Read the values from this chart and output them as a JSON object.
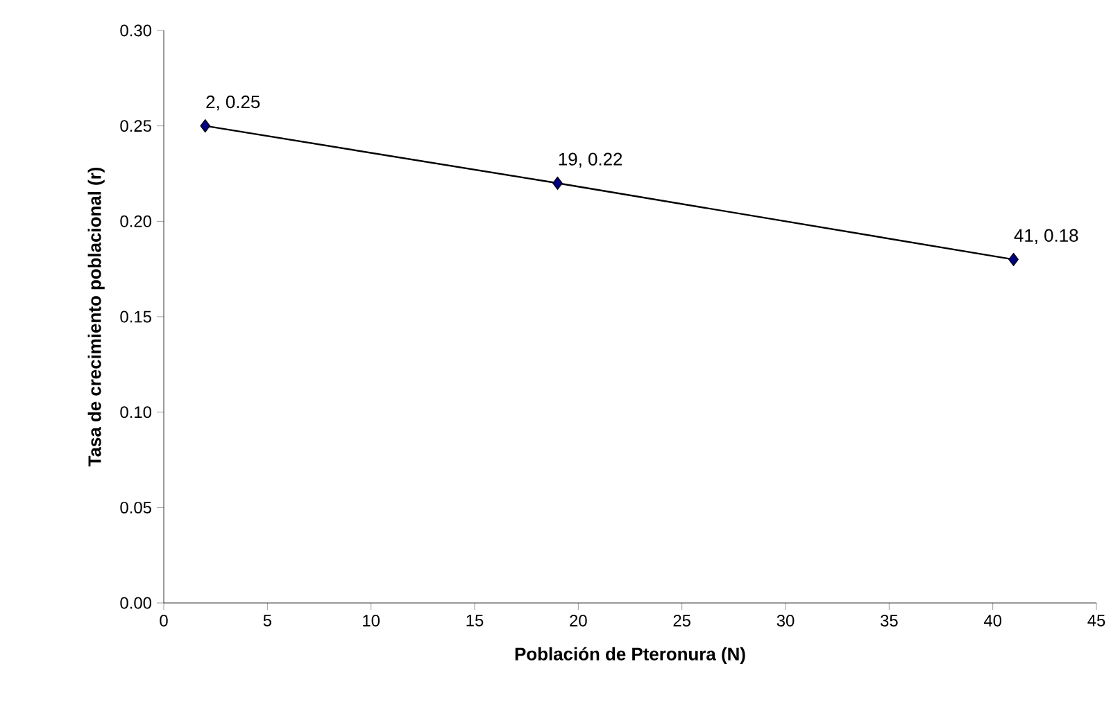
{
  "chart_data": {
    "type": "line",
    "xlabel": "Población de Pteronura (N)",
    "ylabel": "Tasa de crecimiento poblacional (r)",
    "series": [
      {
        "x": [
          2,
          19,
          41
        ],
        "values": [
          0.25,
          0.22,
          0.18
        ],
        "color": "#000080",
        "value_labels": [
          "2, 0.25",
          "19, 0.22",
          "41, 0.18"
        ]
      }
    ],
    "xlim": [
      0,
      45
    ],
    "xticks": [
      0,
      5,
      10,
      15,
      20,
      25,
      30,
      35,
      40,
      45
    ],
    "ylim": [
      0,
      0.3
    ],
    "yticks": [
      {
        "value": 0,
        "label": "0.00"
      },
      {
        "value": 0.05,
        "label": "0.05"
      },
      {
        "value": 0.1,
        "label": "0.10"
      },
      {
        "value": 0.15,
        "label": "0.15"
      },
      {
        "value": 0.2,
        "label": "0.20"
      },
      {
        "value": 0.25,
        "label": "0.25"
      },
      {
        "value": 0.3,
        "label": "0.30"
      }
    ],
    "grid": false,
    "marker": "diamond",
    "line_style": "solid"
  }
}
